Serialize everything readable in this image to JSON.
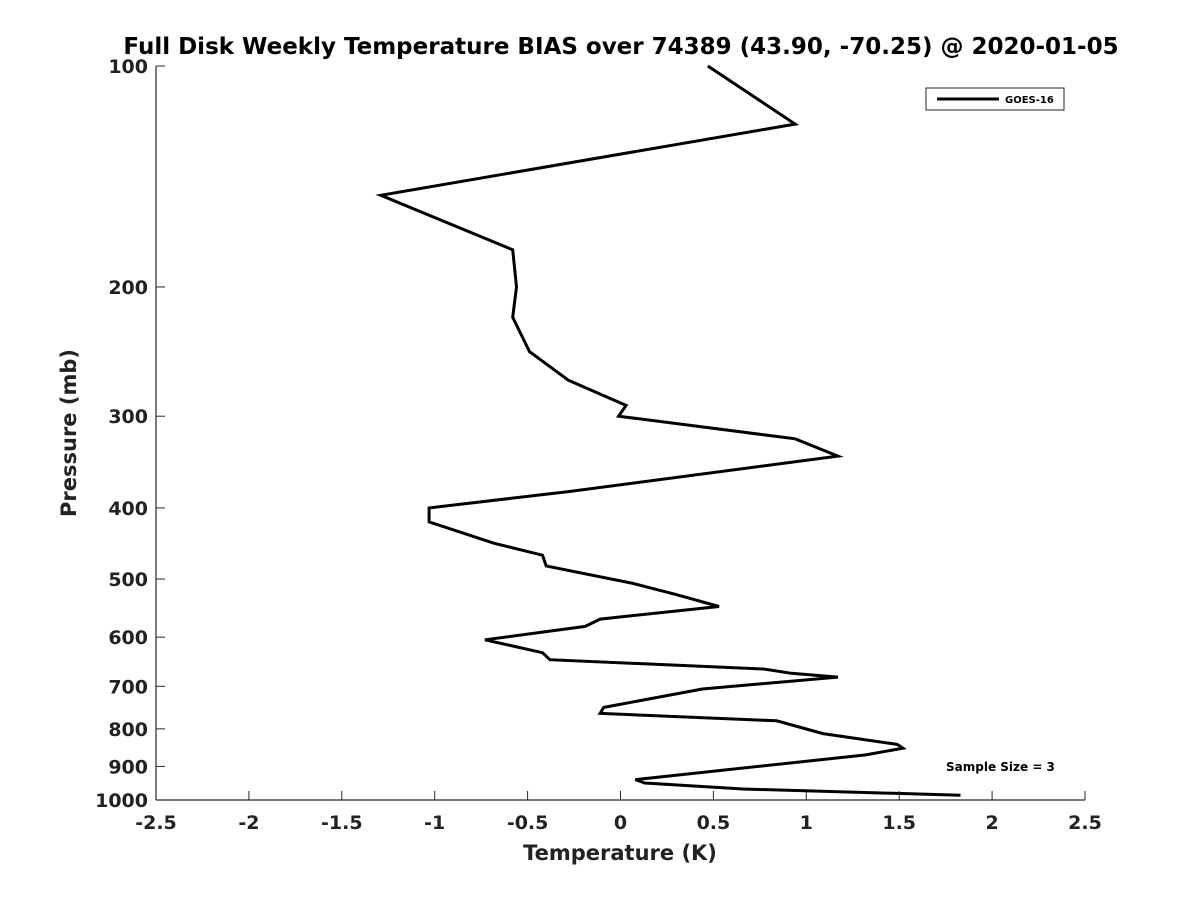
{
  "chart_data": {
    "type": "line",
    "title": "Full Disk Weekly Temperature BIAS over 74389 (43.90, -70.25) @ 2020-01-05",
    "xlabel": "Temperature (K)",
    "ylabel": "Pressure (mb)",
    "xlim": [
      -2.5,
      2.5
    ],
    "ylim": [
      1000,
      100
    ],
    "y_scale": "log",
    "y_reversed": true,
    "x_ticks": [
      "-2.5",
      "-2",
      "-1.5",
      "-1",
      "-0.5",
      "0",
      "0.5",
      "1",
      "1.5",
      "2",
      "2.5"
    ],
    "x_tick_values": [
      -2.5,
      -2,
      -1.5,
      -1,
      -0.5,
      0,
      0.5,
      1,
      1.5,
      2,
      2.5
    ],
    "y_ticks": [
      "100",
      "200",
      "300",
      "400",
      "500",
      "600",
      "700",
      "800",
      "900",
      "1000"
    ],
    "y_tick_values": [
      100,
      200,
      300,
      400,
      500,
      600,
      700,
      800,
      900,
      1000
    ],
    "grid": false,
    "legend_position": "top-right",
    "series": [
      {
        "name": "GOES-16",
        "color": "#000000",
        "points": [
          [
            0.47,
            100
          ],
          [
            0.94,
            120
          ],
          [
            -1.29,
            150
          ],
          [
            -0.58,
            178
          ],
          [
            -0.56,
            200
          ],
          [
            -0.58,
            220
          ],
          [
            -0.49,
            245
          ],
          [
            -0.28,
            268
          ],
          [
            0.03,
            290
          ],
          [
            -0.01,
            300
          ],
          [
            0.94,
            322
          ],
          [
            1.17,
            340
          ],
          [
            -0.28,
            380
          ],
          [
            -1.03,
            400
          ],
          [
            -1.03,
            418
          ],
          [
            -0.68,
            447
          ],
          [
            -0.42,
            464
          ],
          [
            -0.4,
            480
          ],
          [
            0.07,
            507
          ],
          [
            0.3,
            525
          ],
          [
            0.53,
            545
          ],
          [
            -0.11,
            567
          ],
          [
            -0.19,
            580
          ],
          [
            -0.73,
            605
          ],
          [
            -0.42,
            630
          ],
          [
            -0.38,
            644
          ],
          [
            0.77,
            663
          ],
          [
            0.92,
            672
          ],
          [
            1.17,
            680
          ],
          [
            0.44,
            706
          ],
          [
            -0.09,
            748
          ],
          [
            -0.11,
            762
          ],
          [
            0.84,
            780
          ],
          [
            1.09,
            812
          ],
          [
            1.49,
            840
          ],
          [
            1.52,
            850
          ],
          [
            1.32,
            868
          ],
          [
            0.08,
            938
          ],
          [
            0.13,
            948
          ],
          [
            0.66,
            966
          ],
          [
            1.83,
            985
          ]
        ]
      }
    ],
    "annotations": [
      {
        "text": "Sample Size = 3"
      }
    ]
  }
}
